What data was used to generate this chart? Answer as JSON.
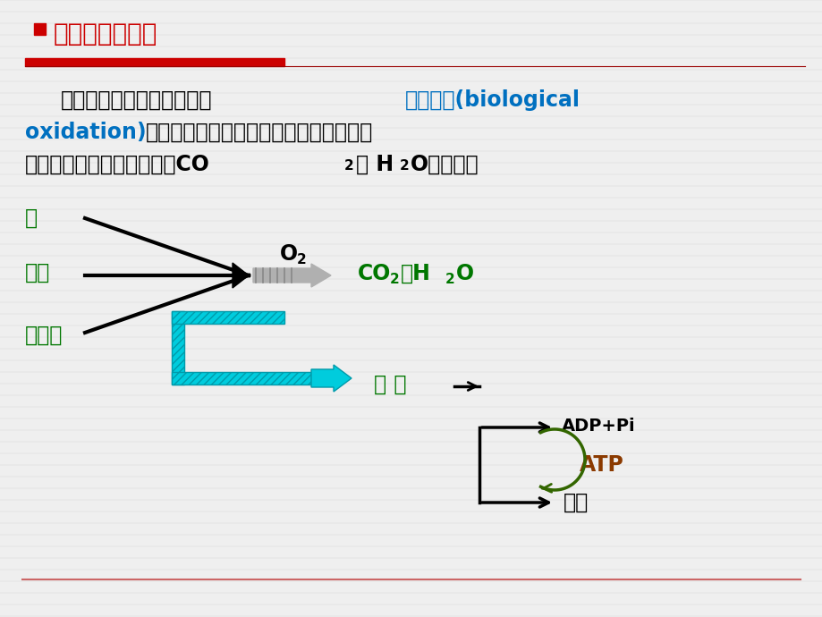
{
  "bg_color": "#efefef",
  "title_bullet_color": "#cc0000",
  "title_text": "生物氧化的概念",
  "title_color": "#cc0000",
  "red_bar_color": "#cc0000",
  "blue_text_color": "#0070c0",
  "green_text_color": "#007700",
  "atp_color": "#8B3A00",
  "bottom_line_color": "#cc6666",
  "p1_black": "物质在生物体内进行氧化称",
  "p1_blue": "生物氧化(biological",
  "p2_blue": "oxidation)",
  "p2_black": "，主要指糖、脂肪、蛋白质等在体内分解",
  "p3_black1": "时逐步释放能量，最终生成CO",
  "p3_black2": "和 H",
  "p3_black3": "O的过程。",
  "label_tang": "糖",
  "label_zhifang": "脂肪",
  "label_danbai": "蛋白质",
  "label_o2": "O",
  "label_co2h2o_1": "CO",
  "label_co2h2o_2": "和H",
  "label_co2h2o_3": "O",
  "label_energy": "能 量",
  "label_adppi": "ADP+Pi",
  "label_atp": "ATP",
  "label_re": "热能"
}
